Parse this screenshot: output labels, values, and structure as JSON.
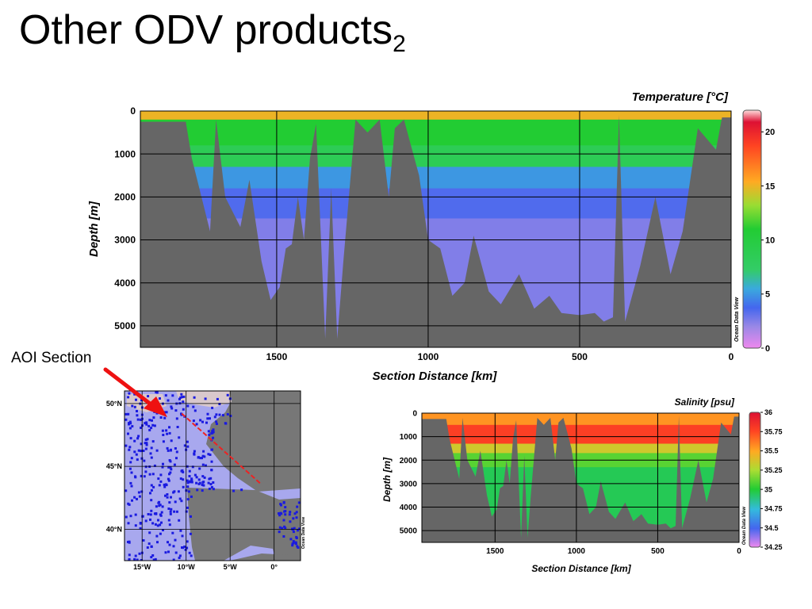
{
  "slide": {
    "title": "Other ODV products",
    "title_subscript": "2",
    "annotation": "AOI Section",
    "watermark": "Ocean Data View"
  },
  "chart_data": [
    {
      "type": "heatmap",
      "name": "temperature-section",
      "title": "Temperature [°C]",
      "xlabel": "Section Distance [km]",
      "ylabel": "Depth [m]",
      "xlim": [
        1950,
        0
      ],
      "ylim": [
        0,
        5500
      ],
      "x_ticks": [
        1500,
        1000,
        500,
        0
      ],
      "y_ticks": [
        0,
        1000,
        2000,
        3000,
        4000,
        5000
      ],
      "colorbar": {
        "min": 0,
        "max": 22,
        "ticks": [
          0,
          5,
          10,
          15,
          20
        ]
      },
      "layers": [
        {
          "top": 0,
          "bottom": 200,
          "value": 15
        },
        {
          "top": 200,
          "bottom": 800,
          "value": 11
        },
        {
          "top": 800,
          "bottom": 1300,
          "value": 8.5
        },
        {
          "top": 1300,
          "bottom": 1800,
          "value": 5
        },
        {
          "top": 1800,
          "bottom": 2500,
          "value": 3.5
        },
        {
          "top": 2500,
          "bottom": 5500,
          "value": 2.5
        }
      ],
      "seafloor": [
        [
          1950,
          250
        ],
        [
          1800,
          250
        ],
        [
          1780,
          1100
        ],
        [
          1720,
          2800
        ],
        [
          1700,
          200
        ],
        [
          1670,
          2000
        ],
        [
          1620,
          2700
        ],
        [
          1590,
          1600
        ],
        [
          1550,
          3500
        ],
        [
          1520,
          4400
        ],
        [
          1490,
          4100
        ],
        [
          1470,
          3200
        ],
        [
          1450,
          3100
        ],
        [
          1430,
          2000
        ],
        [
          1410,
          3000
        ],
        [
          1390,
          1100
        ],
        [
          1370,
          300
        ],
        [
          1340,
          5300
        ],
        [
          1320,
          1800
        ],
        [
          1300,
          5300
        ],
        [
          1280,
          3500
        ],
        [
          1240,
          200
        ],
        [
          1200,
          500
        ],
        [
          1160,
          200
        ],
        [
          1130,
          2000
        ],
        [
          1110,
          400
        ],
        [
          1080,
          200
        ],
        [
          1030,
          1500
        ],
        [
          1000,
          3000
        ],
        [
          960,
          3200
        ],
        [
          920,
          4300
        ],
        [
          880,
          4000
        ],
        [
          850,
          2900
        ],
        [
          800,
          4200
        ],
        [
          760,
          4500
        ],
        [
          700,
          3800
        ],
        [
          650,
          4600
        ],
        [
          600,
          4300
        ],
        [
          560,
          4700
        ],
        [
          500,
          4750
        ],
        [
          450,
          4700
        ],
        [
          420,
          4900
        ],
        [
          390,
          4800
        ],
        [
          370,
          100
        ],
        [
          350,
          4900
        ],
        [
          300,
          3600
        ],
        [
          250,
          2000
        ],
        [
          200,
          3800
        ],
        [
          160,
          2800
        ],
        [
          110,
          400
        ],
        [
          50,
          900
        ],
        [
          30,
          150
        ],
        [
          0,
          150
        ]
      ]
    },
    {
      "type": "heatmap",
      "name": "salinity-section",
      "title": "Salinity [psu]",
      "xlabel": "Section Distance [km]",
      "ylabel": "Depth [m]",
      "xlim": [
        1950,
        0
      ],
      "ylim": [
        0,
        5500
      ],
      "x_ticks": [
        1500,
        1000,
        500,
        0
      ],
      "y_ticks": [
        0,
        1000,
        2000,
        3000,
        4000,
        5000
      ],
      "colorbar": {
        "min": 34.25,
        "max": 36,
        "ticks": [
          34.25,
          34.5,
          34.75,
          35,
          35.25,
          35.5,
          35.75,
          36
        ]
      },
      "layers": [
        {
          "top": 0,
          "bottom": 500,
          "value": 35.55
        },
        {
          "top": 500,
          "bottom": 1300,
          "value": 35.78
        },
        {
          "top": 1300,
          "bottom": 1700,
          "value": 35.35
        },
        {
          "top": 1700,
          "bottom": 2300,
          "value": 35.1
        },
        {
          "top": 2300,
          "bottom": 5500,
          "value": 34.95
        }
      ],
      "seafloor": [
        [
          1950,
          250
        ],
        [
          1800,
          250
        ],
        [
          1780,
          1100
        ],
        [
          1720,
          2800
        ],
        [
          1700,
          200
        ],
        [
          1670,
          2000
        ],
        [
          1620,
          2700
        ],
        [
          1590,
          1600
        ],
        [
          1550,
          3500
        ],
        [
          1520,
          4400
        ],
        [
          1490,
          4100
        ],
        [
          1470,
          3200
        ],
        [
          1450,
          3100
        ],
        [
          1430,
          2000
        ],
        [
          1410,
          3000
        ],
        [
          1390,
          1100
        ],
        [
          1370,
          300
        ],
        [
          1340,
          5300
        ],
        [
          1320,
          1800
        ],
        [
          1300,
          5300
        ],
        [
          1280,
          3500
        ],
        [
          1240,
          200
        ],
        [
          1200,
          500
        ],
        [
          1160,
          200
        ],
        [
          1130,
          2000
        ],
        [
          1110,
          400
        ],
        [
          1080,
          200
        ],
        [
          1030,
          1500
        ],
        [
          1000,
          3000
        ],
        [
          960,
          3200
        ],
        [
          920,
          4300
        ],
        [
          880,
          4000
        ],
        [
          850,
          2900
        ],
        [
          800,
          4200
        ],
        [
          760,
          4500
        ],
        [
          700,
          3800
        ],
        [
          650,
          4600
        ],
        [
          600,
          4300
        ],
        [
          560,
          4700
        ],
        [
          500,
          4750
        ],
        [
          450,
          4700
        ],
        [
          420,
          4900
        ],
        [
          390,
          4800
        ],
        [
          370,
          100
        ],
        [
          350,
          4900
        ],
        [
          300,
          3600
        ],
        [
          250,
          2000
        ],
        [
          200,
          3800
        ],
        [
          160,
          2800
        ],
        [
          110,
          400
        ],
        [
          50,
          900
        ],
        [
          30,
          150
        ],
        [
          0,
          150
        ]
      ]
    },
    {
      "type": "scatter",
      "name": "station-map",
      "xlim": [
        -17,
        3
      ],
      "ylim": [
        37.5,
        51
      ],
      "x_ticks": [
        {
          "value": -15,
          "label": "15°W"
        },
        {
          "value": -10,
          "label": "10°W"
        },
        {
          "value": -5,
          "label": "5°W"
        },
        {
          "value": 0,
          "label": "0°"
        }
      ],
      "y_ticks": [
        {
          "value": 50,
          "label": "50°N"
        },
        {
          "value": 45,
          "label": "45°N"
        },
        {
          "value": 40,
          "label": "40°N"
        }
      ],
      "section_line": [
        [
          -10.5,
          49.2
        ],
        [
          -1.5,
          43.6
        ]
      ]
    }
  ]
}
